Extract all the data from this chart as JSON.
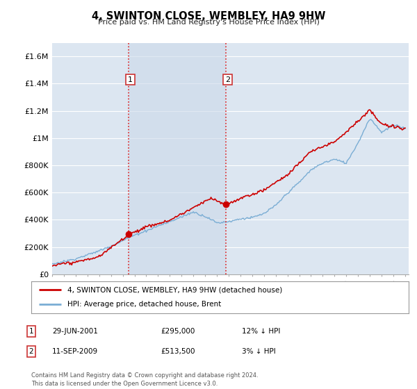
{
  "title": "4, SWINTON CLOSE, WEMBLEY, HA9 9HW",
  "subtitle": "Price paid vs. HM Land Registry's House Price Index (HPI)",
  "ylim": [
    0,
    1700000
  ],
  "yticks": [
    0,
    200000,
    400000,
    600000,
    800000,
    1000000,
    1200000,
    1400000,
    1600000
  ],
  "ytick_labels": [
    "£0",
    "£200K",
    "£400K",
    "£600K",
    "£800K",
    "£1M",
    "£1.2M",
    "£1.4M",
    "£1.6M"
  ],
  "background_color": "#ffffff",
  "plot_bg_color": "#dce6f1",
  "grid_color": "#ffffff",
  "sale1_year": 2001.5,
  "sale1_price": 295000,
  "sale2_year": 2009.75,
  "sale2_price": 513500,
  "vline_color": "#dd2222",
  "legend_label_red": "4, SWINTON CLOSE, WEMBLEY, HA9 9HW (detached house)",
  "legend_label_blue": "HPI: Average price, detached house, Brent",
  "annotation1": [
    "1",
    "29-JUN-2001",
    "£295,000",
    "12% ↓ HPI"
  ],
  "annotation2": [
    "2",
    "11-SEP-2009",
    "£513,500",
    "3% ↓ HPI"
  ],
  "footer": "Contains HM Land Registry data © Crown copyright and database right 2024.\nThis data is licensed under the Open Government Licence v3.0.",
  "line_color_red": "#cc0000",
  "line_color_blue": "#7aadd4",
  "hpi_ctrl_x": [
    1995,
    1996,
    1997,
    1998,
    1999,
    2000,
    2001,
    2002,
    2003,
    2004,
    2005,
    2006,
    2007,
    2008,
    2009,
    2010,
    2011,
    2012,
    2013,
    2014,
    2015,
    2016,
    2017,
    2018,
    2019,
    2020,
    2021,
    2022,
    2023,
    2024,
    2025
  ],
  "hpi_ctrl_y": [
    75000,
    95000,
    115000,
    145000,
    175000,
    210000,
    250000,
    290000,
    320000,
    355000,
    385000,
    420000,
    460000,
    430000,
    380000,
    390000,
    410000,
    420000,
    450000,
    510000,
    600000,
    680000,
    770000,
    820000,
    850000,
    820000,
    970000,
    1150000,
    1050000,
    1100000,
    1080000
  ],
  "prop_ctrl_x": [
    1995,
    1997,
    1999,
    2001.5,
    2003,
    2005,
    2007,
    2008.5,
    2009.75,
    2011,
    2013,
    2015,
    2017,
    2019,
    2021,
    2022,
    2023,
    2024,
    2025
  ],
  "prop_ctrl_y": [
    65000,
    90000,
    130000,
    295000,
    350000,
    400000,
    490000,
    560000,
    513500,
    560000,
    620000,
    730000,
    900000,
    970000,
    1120000,
    1200000,
    1100000,
    1080000,
    1070000
  ]
}
